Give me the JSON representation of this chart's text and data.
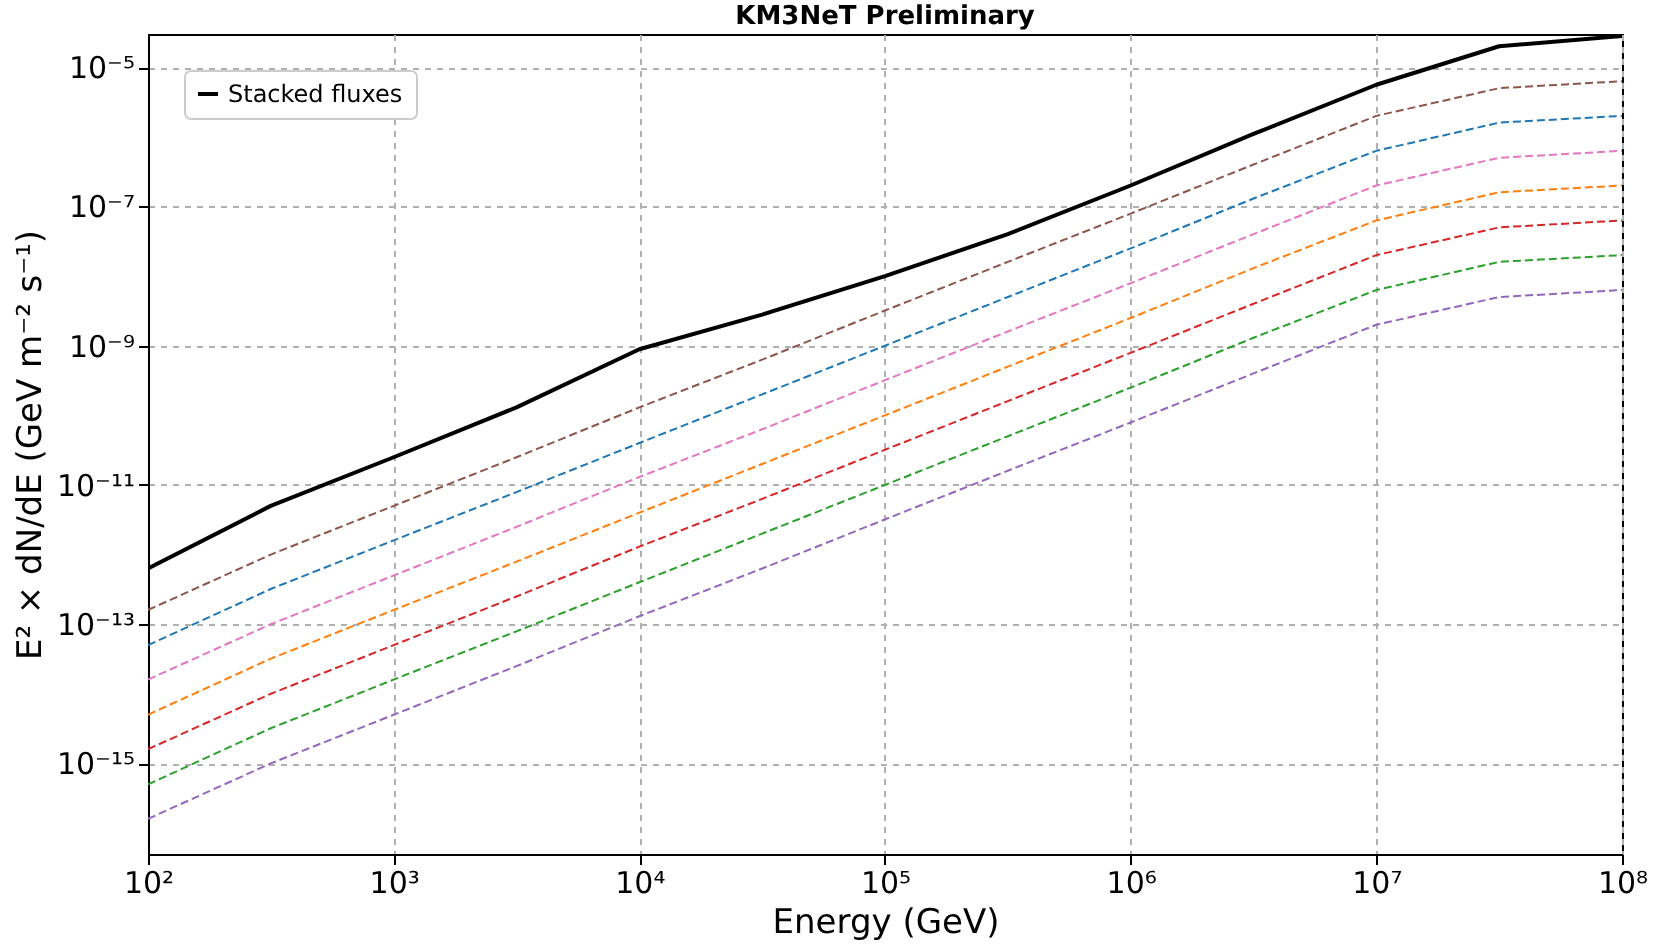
{
  "chart_data": {
    "type": "line",
    "title": "KM3NeT Preliminary",
    "xlabel": "Energy (GeV)",
    "ylabel": "E² × dN/dE (GeV m⁻² s⁻¹)",
    "log": "xy",
    "grid": true,
    "legend": "top left",
    "marker": "none",
    "x": [
      100,
      316,
      1000,
      3162,
      10000,
      31623,
      100000,
      316228,
      1000000,
      3162278,
      10000000,
      31622777,
      100000000
    ],
    "xlim": [
      100,
      100000000
    ],
    "xticks": [
      {
        "value": 100,
        "label": "10²"
      },
      {
        "value": 1000,
        "label": "10³"
      },
      {
        "value": 10000,
        "label": "10⁴"
      },
      {
        "value": 100000,
        "label": "10⁵"
      },
      {
        "value": 1000000,
        "label": "10⁶"
      },
      {
        "value": 10000000,
        "label": "10⁷"
      },
      {
        "value": 100000000,
        "label": "10⁸"
      }
    ],
    "ylim": [
      5e-17,
      3e-05
    ],
    "yticks": [
      {
        "value": 1e-15,
        "label": "10⁻¹⁵"
      },
      {
        "value": 1e-13,
        "label": "10⁻¹³"
      },
      {
        "value": 1e-11,
        "label": "10⁻¹¹"
      },
      {
        "value": 1e-09,
        "label": "10⁻⁹"
      },
      {
        "value": 1e-07,
        "label": "10⁻⁷"
      },
      {
        "value": 1e-05,
        "label": "10⁻⁵"
      }
    ],
    "series": [
      {
        "color": "#9467bd",
        "line_style": "dashed",
        "values": [
          1.6e-16,
          1e-15,
          5e-15,
          2.5e-14,
          1.3e-13,
          6.3e-13,
          3.2e-12,
          1.6e-11,
          7.9e-11,
          4e-10,
          2e-09,
          5e-09,
          6.3e-09
        ]
      },
      {
        "color": "#2ca02c",
        "line_style": "dashed",
        "values": [
          5e-16,
          3.2e-15,
          1.6e-14,
          7.9e-14,
          4e-13,
          2e-12,
          1e-11,
          5e-11,
          2.5e-10,
          1.3e-09,
          6.3e-09,
          1.6e-08,
          2e-08
        ]
      },
      {
        "color": "#d62728",
        "line_style": "dashed",
        "values": [
          1.6e-15,
          1e-14,
          5e-14,
          2.5e-13,
          1.3e-12,
          6.3e-12,
          3.2e-11,
          1.6e-10,
          7.9e-10,
          4e-09,
          2e-08,
          5e-08,
          6.3e-08
        ]
      },
      {
        "color": "#ff7f0e",
        "line_style": "dashed",
        "values": [
          5e-15,
          3.2e-14,
          1.6e-13,
          7.9e-13,
          4e-12,
          2e-11,
          1e-10,
          5e-10,
          2.5e-09,
          1.3e-08,
          6.3e-08,
          1.6e-07,
          2e-07
        ]
      },
      {
        "color": "#e377c2",
        "line_style": "dashed",
        "values": [
          1.6e-14,
          1e-13,
          5e-13,
          2.5e-12,
          1.3e-11,
          6.3e-11,
          3.2e-10,
          1.6e-09,
          7.9e-09,
          4e-08,
          2e-07,
          5e-07,
          6.3e-07
        ]
      },
      {
        "color": "#1f77b4",
        "line_style": "dashed",
        "values": [
          5e-14,
          3.2e-13,
          1.6e-12,
          7.9e-12,
          4e-11,
          2e-10,
          1e-09,
          5e-09,
          2.5e-08,
          1.3e-07,
          6.3e-07,
          1.6e-06,
          2e-06
        ]
      },
      {
        "color": "#8c564b",
        "line_style": "dashed",
        "values": [
          1.6e-13,
          1e-12,
          5e-12,
          2.5e-11,
          1.3e-10,
          6.3e-10,
          3.2e-09,
          1.6e-08,
          7.9e-08,
          4e-07,
          2e-06,
          5e-06,
          6.3e-06
        ]
      },
      {
        "name": "Stacked fluxes",
        "color": "#000000",
        "line_style": "solid",
        "values": [
          6.3e-13,
          5e-12,
          2.5e-11,
          1.3e-10,
          8.9e-10,
          2.8e-09,
          1e-08,
          4e-08,
          2e-07,
          1.1e-06,
          5.6e-06,
          2e-05,
          2.8e-05
        ]
      }
    ]
  }
}
